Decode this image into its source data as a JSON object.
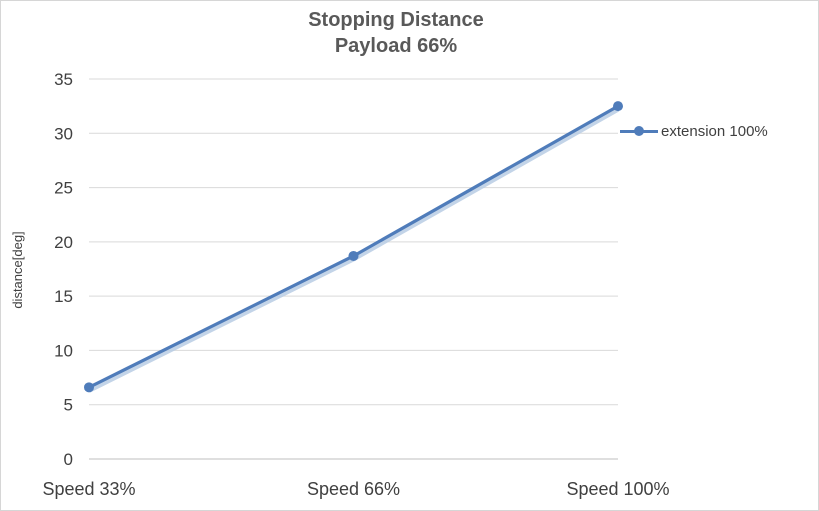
{
  "chart": {
    "title_line1": "Stopping Distance",
    "title_line2": "Payload 66%"
  },
  "chart_data": {
    "type": "line",
    "title": "Stopping Distance Payload 66%",
    "categories": [
      "Speed 33%",
      "Speed 66%",
      "Speed 100%"
    ],
    "series": [
      {
        "name": "extension 100%",
        "values": [
          6.6,
          18.7,
          32.5
        ]
      }
    ],
    "xlabel": "",
    "ylabel": "distance[deg]",
    "ylim": [
      0,
      35
    ],
    "ytick_step": 5,
    "grid": true,
    "legend_position": "right",
    "colors": {
      "series": "#4F7CBA",
      "series_light": "#B8CCE4",
      "grid": "#D9D9D9",
      "axis": "#BFBFBF",
      "title_text": "#595959",
      "tick_text": "#404040"
    }
  }
}
